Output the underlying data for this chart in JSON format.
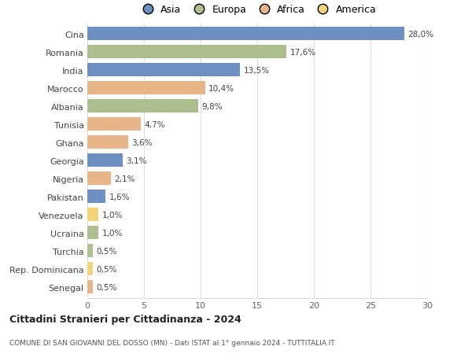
{
  "countries": [
    "Cina",
    "Romania",
    "India",
    "Marocco",
    "Albania",
    "Tunisia",
    "Ghana",
    "Georgia",
    "Nigeria",
    "Pakistan",
    "Venezuela",
    "Ucraina",
    "Turchia",
    "Rep. Dominicana",
    "Senegal"
  ],
  "values": [
    28.0,
    17.6,
    13.5,
    10.4,
    9.8,
    4.7,
    3.6,
    3.1,
    2.1,
    1.6,
    1.0,
    1.0,
    0.5,
    0.5,
    0.5
  ],
  "labels": [
    "28,0%",
    "17,6%",
    "13,5%",
    "10,4%",
    "9,8%",
    "4,7%",
    "3,6%",
    "3,1%",
    "2,1%",
    "1,6%",
    "1,0%",
    "1,0%",
    "0,5%",
    "0,5%",
    "0,5%"
  ],
  "continents": [
    "Asia",
    "Europa",
    "Asia",
    "Africa",
    "Europa",
    "Africa",
    "Africa",
    "Asia",
    "Africa",
    "Asia",
    "America",
    "Europa",
    "Europa",
    "America",
    "Africa"
  ],
  "colors": {
    "Asia": "#6e8fc2",
    "Europa": "#adbf8e",
    "Africa": "#e8b48a",
    "America": "#f2d478"
  },
  "legend_labels": [
    "Asia",
    "Europa",
    "Africa",
    "America"
  ],
  "legend_colors": [
    "#6e8fc2",
    "#adbf8e",
    "#e8b48a",
    "#f2d478"
  ],
  "title": "Cittadini Stranieri per Cittadinanza - 2024",
  "subtitle": "COMUNE DI SAN GIOVANNI DEL DOSSO (MN) - Dati ISTAT al 1° gennaio 2024 - TUTTITALIA.IT",
  "xlim": [
    0,
    30
  ],
  "xticks": [
    0,
    5,
    10,
    15,
    20,
    25,
    30
  ],
  "bg_color": "#ffffff",
  "grid_color": "#dddddd",
  "bar_height": 0.72
}
